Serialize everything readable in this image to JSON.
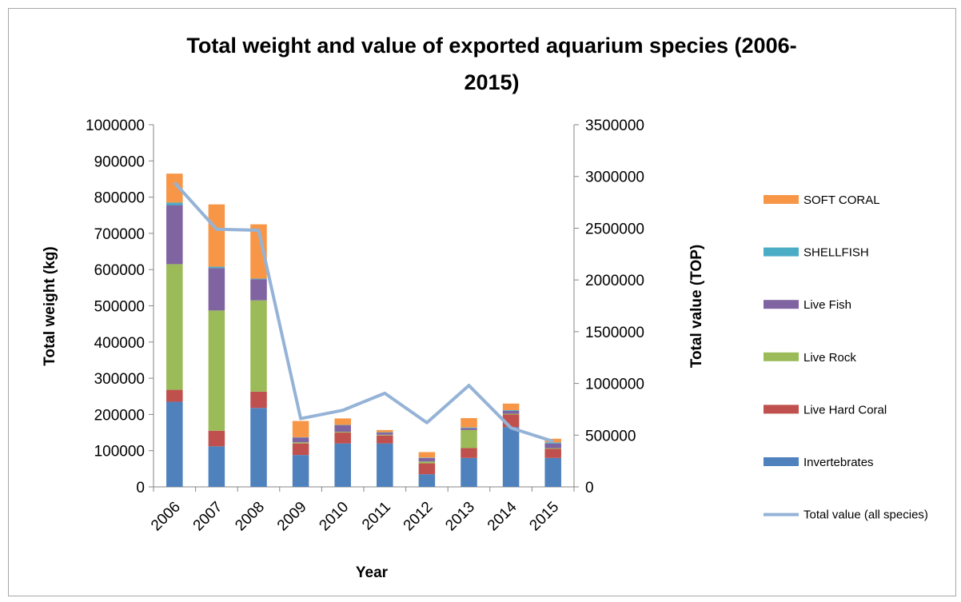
{
  "chart_data": {
    "type": "bar",
    "stacked": true,
    "title_lines": [
      "Total weight and value of  exported aquarium species (2006-",
      "2015)"
    ],
    "xlabel": "Year",
    "ylabel": "Total weight (kg)",
    "y2label": "Total value (TOP)",
    "categories": [
      "2006",
      "2007",
      "2008",
      "2009",
      "2010",
      "2011",
      "2012",
      "2013",
      "2014",
      "2015"
    ],
    "ylim": [
      0,
      1000000
    ],
    "yticks": [
      "0",
      "100000",
      "200000",
      "300000",
      "400000",
      "500000",
      "600000",
      "700000",
      "800000",
      "900000",
      "1000000"
    ],
    "y2lim": [
      0,
      3500000
    ],
    "y2ticks": [
      "0",
      "500000",
      "1000000",
      "1500000",
      "2000000",
      "2500000",
      "3000000",
      "3500000"
    ],
    "series": [
      {
        "name": "Invertebrates",
        "color": "#4f81bd",
        "values": [
          235000,
          112000,
          218000,
          88000,
          120000,
          120000,
          35000,
          80000,
          165000,
          80000
        ]
      },
      {
        "name": "Live Hard Coral",
        "color": "#c0504d",
        "values": [
          33000,
          43000,
          45000,
          32000,
          30000,
          22000,
          30000,
          27000,
          35000,
          25000
        ]
      },
      {
        "name": "Live Rock",
        "color": "#9bbb59",
        "values": [
          347000,
          332000,
          252000,
          3000,
          2000,
          2000,
          5000,
          50000,
          2000,
          2000
        ]
      },
      {
        "name": "Live Fish",
        "color": "#8064a2",
        "values": [
          163000,
          117000,
          58000,
          13000,
          18000,
          6000,
          10000,
          5000,
          8000,
          13000
        ]
      },
      {
        "name": "SHELLFISH",
        "color": "#4bacc6",
        "values": [
          7000,
          4000,
          2000,
          1000,
          1000,
          1000,
          1000,
          2000,
          2000,
          3000
        ]
      },
      {
        "name": "SOFT CORAL",
        "color": "#f79646",
        "values": [
          80000,
          172000,
          150000,
          45000,
          18000,
          6000,
          15000,
          26000,
          18000,
          10000
        ]
      }
    ],
    "line_series": {
      "name": "Total value (all species)",
      "color": "#95b3d7",
      "axis": "right",
      "values": [
        2940000,
        2490000,
        2480000,
        660000,
        740000,
        905000,
        620000,
        980000,
        570000,
        440000
      ]
    },
    "legend_position": "right",
    "grid": false
  }
}
